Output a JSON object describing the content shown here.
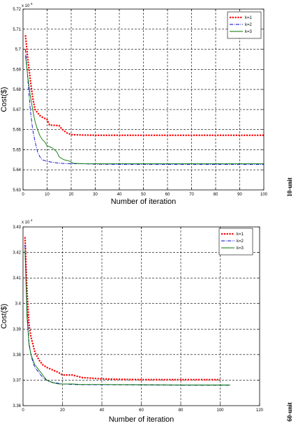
{
  "chart_data": [
    {
      "type": "line",
      "title": "",
      "xlabel": "Number of iteration",
      "ylabel": "Cost($)",
      "y_multiplier": "x 10",
      "y_multiplier_exp": "5",
      "side_label": "10-unit",
      "xlim": [
        0,
        100
      ],
      "ylim": [
        5.63,
        5.72
      ],
      "x_ticks": [
        0,
        10,
        20,
        30,
        40,
        50,
        60,
        70,
        80,
        90,
        100
      ],
      "y_ticks": [
        5.63,
        5.64,
        5.65,
        5.66,
        5.67,
        5.68,
        5.69,
        5.7,
        5.71,
        5.72
      ],
      "x_tick_labels": [
        "0",
        "10",
        "20",
        "30",
        "40",
        "50",
        "60",
        "70",
        "80",
        "90",
        "100"
      ],
      "y_tick_labels": [
        "5.63",
        "5.64",
        "5.65",
        "5.66",
        "5.67",
        "5.68",
        "5.69",
        "5.7",
        "5.71",
        "5.72"
      ],
      "grid": true,
      "legend_position": "top-right",
      "series": [
        {
          "name": "k=1",
          "color": "#ff0000",
          "dash": "dot-thick",
          "x": [
            1,
            2,
            3,
            4,
            5,
            7,
            8,
            10,
            11,
            12,
            15,
            16,
            18,
            20,
            25,
            30,
            40,
            60,
            80,
            100
          ],
          "y": [
            5.707,
            5.695,
            5.685,
            5.676,
            5.67,
            5.667,
            5.6662,
            5.665,
            5.6623,
            5.6622,
            5.662,
            5.6605,
            5.6585,
            5.6575,
            5.6573,
            5.6572,
            5.6572,
            5.6572,
            5.6572,
            5.6572
          ]
        },
        {
          "name": "k=2",
          "color": "#0000cc",
          "dash": "dash-dot",
          "x": [
            1,
            2,
            3,
            4,
            5,
            6,
            7,
            8,
            10,
            12,
            15,
            18,
            20,
            25,
            30,
            40,
            60,
            80,
            100
          ],
          "y": [
            5.7,
            5.685,
            5.67,
            5.66,
            5.654,
            5.649,
            5.6465,
            5.645,
            5.6442,
            5.6438,
            5.6433,
            5.6431,
            5.643,
            5.643,
            5.6428,
            5.6427,
            5.6427,
            5.6427,
            5.6427
          ]
        },
        {
          "name": "k=3",
          "color": "#007700",
          "dash": "solid",
          "x": [
            1,
            2,
            3,
            4,
            5,
            6,
            7,
            8,
            9,
            10,
            12,
            14,
            15,
            17,
            19,
            21,
            25,
            30,
            40,
            60,
            80,
            100
          ],
          "y": [
            5.697,
            5.686,
            5.677,
            5.67,
            5.664,
            5.66,
            5.657,
            5.655,
            5.654,
            5.652,
            5.651,
            5.649,
            5.6465,
            5.645,
            5.6445,
            5.6432,
            5.643,
            5.643,
            5.643,
            5.643,
            5.643,
            5.643
          ]
        }
      ]
    },
    {
      "type": "line",
      "title": "",
      "xlabel": "Number of iteration",
      "ylabel": "Cost($)",
      "y_multiplier": "x 10",
      "y_multiplier_exp": "4",
      "side_label": "60-unit",
      "xlim": [
        0,
        120
      ],
      "ylim": [
        3.36,
        3.43
      ],
      "x_ticks": [
        0,
        20,
        40,
        60,
        80,
        100,
        120
      ],
      "y_ticks": [
        3.36,
        3.37,
        3.38,
        3.39,
        3.4,
        3.41,
        3.42,
        3.43
      ],
      "x_tick_labels": [
        "0",
        "20",
        "40",
        "60",
        "80",
        "100",
        "120"
      ],
      "y_tick_labels": [
        "3.36",
        "3.37",
        "3.38",
        "3.39",
        "3.4",
        "3.41",
        "3.42",
        "3.43"
      ],
      "grid": true,
      "legend_position": "top-right",
      "series": [
        {
          "name": "k=1",
          "color": "#ff0000",
          "dash": "dot-thick",
          "x": [
            1,
            2,
            3,
            4,
            5,
            6,
            8,
            10,
            12,
            15,
            18,
            20,
            25,
            30,
            40,
            50,
            60,
            80,
            100
          ],
          "y": [
            3.426,
            3.405,
            3.392,
            3.387,
            3.384,
            3.381,
            3.378,
            3.376,
            3.375,
            3.374,
            3.373,
            3.372,
            3.372,
            3.371,
            3.3705,
            3.3703,
            3.3702,
            3.3702,
            3.3702
          ]
        },
        {
          "name": "k=2",
          "color": "#0000cc",
          "dash": "dash-dot",
          "x": [
            1,
            2,
            3,
            4,
            5,
            6,
            8,
            10,
            13,
            16,
            20,
            25,
            30,
            40,
            60,
            80,
            100,
            105
          ],
          "y": [
            3.423,
            3.398,
            3.385,
            3.38,
            3.377,
            3.375,
            3.373,
            3.371,
            3.3695,
            3.369,
            3.3685,
            3.3683,
            3.3682,
            3.3682,
            3.3681,
            3.368,
            3.368,
            3.368
          ]
        },
        {
          "name": "k=3",
          "color": "#007700",
          "dash": "solid",
          "x": [
            1,
            2,
            3,
            4,
            5,
            6,
            8,
            10,
            12,
            15,
            18,
            20,
            25,
            30,
            40,
            60,
            80,
            100,
            105
          ],
          "y": [
            3.421,
            3.395,
            3.384,
            3.38,
            3.378,
            3.376,
            3.374,
            3.372,
            3.37,
            3.369,
            3.3685,
            3.3685,
            3.3685,
            3.3683,
            3.3683,
            3.3682,
            3.3681,
            3.3681,
            3.3681
          ]
        }
      ]
    }
  ]
}
